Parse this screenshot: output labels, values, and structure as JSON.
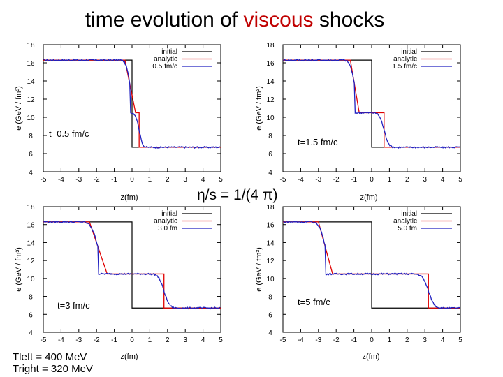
{
  "title": {
    "prefix": "time evolution of",
    "highlight": "viscous",
    "suffix": "shocks"
  },
  "center_label": "η/s = 1/(4 π)",
  "note": {
    "line1": "Tleft = 400 MeV",
    "line2": "Tright = 320 MeV"
  },
  "colors": {
    "initial": "#000000",
    "analytic": "#e00000",
    "numeric": "#2020c0",
    "highlight": "#c00000"
  },
  "chart_data": [
    {
      "type": "line",
      "time_label": "t=0.5 fm/c",
      "xlabel": "z(fm)",
      "ylabel": "e (GeV / fm³)",
      "xlim": [
        -5,
        5
      ],
      "ylim": [
        4,
        18
      ],
      "xticks": [
        -5,
        -4,
        -3,
        -2,
        -1,
        0,
        1,
        2,
        3,
        4,
        5
      ],
      "yticks": [
        4,
        6,
        8,
        10,
        12,
        14,
        16,
        18
      ],
      "legend": [
        "initial",
        "analytic",
        "0.5 fm/c"
      ],
      "initial": {
        "left": 16.3,
        "right": 6.7,
        "z0": 0
      },
      "analytic": {
        "left": 16.3,
        "mid": 10.5,
        "right": 6.7,
        "z1": -0.4,
        "z2": 0.2,
        "z3": 0.4
      },
      "numeric_width": 0.22
    },
    {
      "type": "line",
      "time_label": "t=1.5 fm/c",
      "xlabel": "z(fm)",
      "ylabel": "e (GeV / fm³)",
      "xlim": [
        -5,
        5
      ],
      "ylim": [
        4,
        18
      ],
      "xticks": [
        -5,
        -4,
        -3,
        -2,
        -1,
        0,
        1,
        2,
        3,
        4,
        5
      ],
      "yticks": [
        4,
        6,
        8,
        10,
        12,
        14,
        16,
        18
      ],
      "legend": [
        "initial",
        "analytic",
        "1.5 fm/c"
      ],
      "initial": {
        "left": 16.3,
        "right": 6.7,
        "z0": 0
      },
      "analytic": {
        "left": 16.3,
        "mid": 10.5,
        "right": 6.7,
        "z1": -1.2,
        "z2": -0.7,
        "z3": 0.7
      },
      "numeric_width": 0.3
    },
    {
      "type": "line",
      "time_label": "t=3 fm/c",
      "xlabel": "z(fm)",
      "ylabel": "e (GeV / fm³)",
      "xlim": [
        -5,
        5
      ],
      "ylim": [
        4,
        18
      ],
      "xticks": [
        -5,
        -4,
        -3,
        -2,
        -1,
        0,
        1,
        2,
        3,
        4,
        5
      ],
      "yticks": [
        4,
        6,
        8,
        10,
        12,
        14,
        16,
        18
      ],
      "legend": [
        "initial",
        "analytic",
        "3.0 fm"
      ],
      "initial": {
        "left": 16.3,
        "right": 6.7,
        "z0": 0
      },
      "analytic": {
        "left": 16.3,
        "mid": 10.5,
        "right": 6.7,
        "z1": -2.4,
        "z2": -1.4,
        "z3": 1.8
      },
      "numeric_width": 0.35
    },
    {
      "type": "line",
      "time_label": "t=5 fm/c",
      "xlabel": "z(fm)",
      "ylabel": "e (GeV / fm³)",
      "xlim": [
        -5,
        5
      ],
      "ylim": [
        4,
        18
      ],
      "xticks": [
        -5,
        -4,
        -3,
        -2,
        -1,
        0,
        1,
        2,
        3,
        4,
        5
      ],
      "yticks": [
        4,
        6,
        8,
        10,
        12,
        14,
        16,
        18
      ],
      "legend": [
        "initial",
        "analytic",
        "5.0 fm"
      ],
      "initial": {
        "left": 16.3,
        "right": 6.7,
        "z0": 0
      },
      "analytic": {
        "left": 16.3,
        "mid": 10.5,
        "right": 6.7,
        "z1": -3.0,
        "z2": -2.2,
        "z3": 3.2
      },
      "numeric_width": 0.38
    }
  ]
}
